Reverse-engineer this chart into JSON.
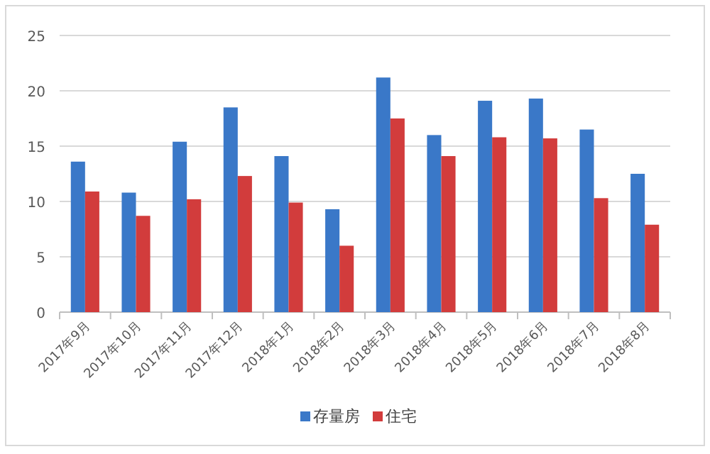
{
  "chart_data": {
    "type": "bar",
    "categories": [
      "2017年9月",
      "2017年10月",
      "2017年11月",
      "2017年12月",
      "2018年1月",
      "2018年2月",
      "2018年3月",
      "2018年4月",
      "2018年5月",
      "2018年6月",
      "2018年7月",
      "2018年8月"
    ],
    "series": [
      {
        "name": "存量房",
        "color": "#3a78c8",
        "values": [
          13.6,
          10.8,
          15.4,
          18.5,
          14.1,
          9.3,
          21.2,
          16.0,
          19.1,
          19.3,
          16.5,
          12.5
        ]
      },
      {
        "name": "住宅",
        "color": "#d23c3c",
        "values": [
          10.9,
          8.7,
          10.2,
          12.3,
          9.9,
          6.0,
          17.5,
          14.1,
          15.8,
          15.7,
          10.3,
          7.9
        ]
      }
    ],
    "ylim": [
      0,
      25
    ],
    "yticks": [
      0,
      5,
      10,
      15,
      20,
      25
    ],
    "grid": "y",
    "legend": "bottom"
  }
}
